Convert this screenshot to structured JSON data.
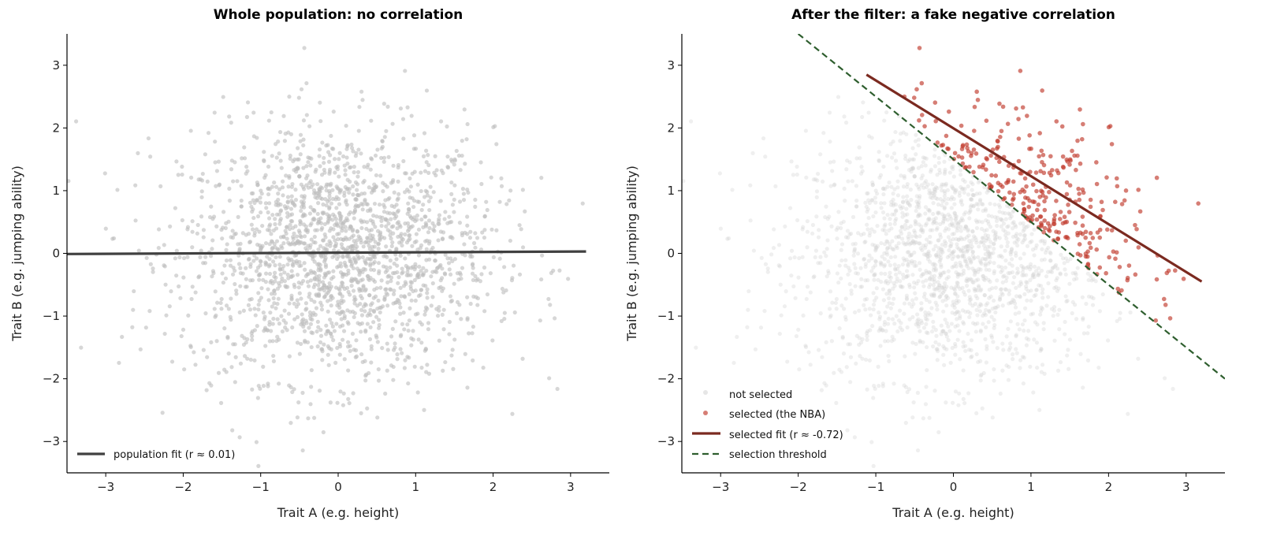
{
  "chart_data": [
    {
      "type": "scatter",
      "title": "Whole population: no correlation",
      "xlabel": "Trait A (e.g. height)",
      "ylabel": "Trait B (e.g. jumping ability)",
      "xlim": [
        -3.5,
        3.5
      ],
      "ylim": [
        -3.5,
        3.5
      ],
      "xticks": [
        -3,
        -2,
        -1,
        0,
        1,
        2,
        3
      ],
      "yticks": [
        -3,
        -2,
        -1,
        0,
        1,
        2,
        3
      ],
      "xtick_labels": [
        "−3",
        "−2",
        "−1",
        "0",
        "1",
        "2",
        "3"
      ],
      "ytick_labels": [
        "−3",
        "−2",
        "−1",
        "0",
        "1",
        "2",
        "3"
      ],
      "grid": false,
      "points": {
        "n": 2000,
        "distribution": "independent standard normal",
        "color": "#bdbdbd"
      },
      "fit_line": {
        "label": "population fit (r ≈ 0.01)",
        "x": [
          -3.5,
          3.2
        ],
        "y": [
          -0.01,
          0.03
        ],
        "color": "#404040"
      },
      "legend": {
        "placement": "lower-left",
        "entries": [
          "population fit (r ≈ 0.01)"
        ]
      }
    },
    {
      "type": "scatter",
      "title": "After the filter: a fake negative correlation",
      "xlabel": "Trait A (e.g. height)",
      "ylabel": "Trait B (e.g. jumping ability)",
      "xlim": [
        -3.5,
        3.5
      ],
      "ylim": [
        -3.5,
        3.5
      ],
      "xticks": [
        -3,
        -2,
        -1,
        0,
        1,
        2,
        3
      ],
      "yticks": [
        -3,
        -2,
        -1,
        0,
        1,
        2,
        3
      ],
      "xtick_labels": [
        "−3",
        "−2",
        "−1",
        "0",
        "1",
        "2",
        "3"
      ],
      "ytick_labels": [
        "−3",
        "−2",
        "−1",
        "0",
        "1",
        "2",
        "3"
      ],
      "grid": false,
      "selection_rule": "A + B > 1.5",
      "series": [
        {
          "name": "not selected",
          "color": "#e6e6e6"
        },
        {
          "name": "selected (the NBA)",
          "color": "#c0392b"
        }
      ],
      "fit_line": {
        "label": "selected fit (r ≈ -0.72)",
        "x": [
          -1.12,
          3.2
        ],
        "y": [
          2.85,
          -0.45
        ],
        "color": "#7b2a20"
      },
      "threshold_line": {
        "label": "selection threshold",
        "x": [
          -2,
          3.5
        ],
        "y": [
          3.5,
          -2
        ],
        "color": "#2e5e2e",
        "style": "dashed"
      },
      "legend": {
        "placement": "lower-left",
        "entries": [
          "not selected",
          "selected (the NBA)",
          "selected fit (r ≈ -0.72)",
          "selection threshold"
        ]
      }
    }
  ]
}
